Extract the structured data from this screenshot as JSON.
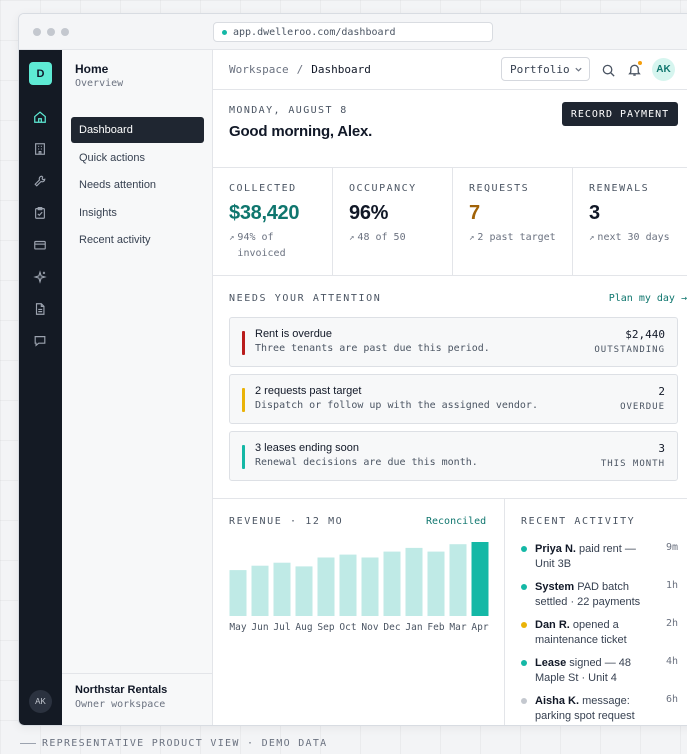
{
  "browser": {
    "url": "app.dwelleroo.com/dashboard"
  },
  "rail": {
    "logo": "D",
    "icons": [
      "home-icon",
      "building-icon",
      "wrench-icon",
      "clipboard-icon",
      "credit-card-icon",
      "sparkle-icon",
      "document-icon",
      "chat-icon"
    ],
    "avatar": "AK"
  },
  "subnav": {
    "title": "Home",
    "subtitle": "Overview",
    "items": [
      "Dashboard",
      "Quick actions",
      "Needs attention",
      "Insights",
      "Recent activity"
    ],
    "active": "Dashboard",
    "org_name": "Northstar Rentals",
    "org_sub": "Owner workspace"
  },
  "topbar": {
    "crumb_root": "Workspace",
    "crumb_sep": "/",
    "crumb_current": "Dashboard",
    "portfolio_label": "Portfolio",
    "avatar": "AK"
  },
  "header": {
    "date": "MONDAY, AUGUST 8",
    "greeting": "Good morning, Alex.",
    "record_button": "RECORD PAYMENT"
  },
  "stats": [
    {
      "label": "COLLECTED",
      "value": "$38,420",
      "sub": "94% of invoiced",
      "color": "#0f766e"
    },
    {
      "label": "OCCUPANCY",
      "value": "96%",
      "sub": "48 of 50",
      "color": "#111827"
    },
    {
      "label": "REQUESTS",
      "value": "7",
      "sub": "2 past target",
      "color": "#a16207"
    },
    {
      "label": "RENEWALS",
      "value": "3",
      "sub": "next 30 days",
      "color": "#111827"
    }
  ],
  "attention": {
    "title": "NEEDS YOUR ATTENTION",
    "link": "Plan my day →",
    "items": [
      {
        "title": "Rent is overdue",
        "desc": "Three tenants are past due this period.",
        "value": "$2,440",
        "unit": "OUTSTANDING",
        "color": "#b91c1c"
      },
      {
        "title": "2 requests past target",
        "desc": "Dispatch or follow up with the assigned vendor.",
        "value": "2",
        "unit": "OVERDUE",
        "color": "#eab308"
      },
      {
        "title": "3 leases ending soon",
        "desc": "Renewal decisions are due this month.",
        "value": "3",
        "unit": "THIS MONTH",
        "color": "#14b8a6"
      }
    ]
  },
  "revenue": {
    "title": "REVENUE · 12 MO",
    "tag": "Reconciled"
  },
  "chart_data": {
    "type": "bar",
    "title": "REVENUE · 12 MO",
    "categories": [
      "May",
      "Jun",
      "Jul",
      "Aug",
      "Sep",
      "Oct",
      "Nov",
      "Dec",
      "Jan",
      "Feb",
      "Mar",
      "Apr"
    ],
    "values": [
      62,
      68,
      72,
      67,
      79,
      83,
      79,
      87,
      92,
      87,
      97,
      100
    ],
    "highlight_index": 11,
    "bar_color": "#bfeae6",
    "highlight_color": "#14b8a6",
    "ylim": [
      0,
      100
    ]
  },
  "activity": {
    "title": "RECENT ACTIVITY",
    "items": [
      {
        "actor": "Priya N.",
        "text": " paid rent — Unit 3B",
        "time": "9m",
        "color": "#14b8a6"
      },
      {
        "actor": "System",
        "text": " PAD batch settled · 22 payments",
        "time": "1h",
        "color": "#14b8a6"
      },
      {
        "actor": "Dan R.",
        "text": " opened a maintenance ticket",
        "time": "2h",
        "color": "#eab308"
      },
      {
        "actor": "Lease",
        "text": " signed — 48 Maple St · Unit 4",
        "time": "4h",
        "color": "#14b8a6"
      },
      {
        "actor": "Aisha K.",
        "text": " message: parking spot request",
        "time": "6h",
        "color": "#c4c8cf"
      }
    ]
  },
  "footer_note": "REPRESENTATIVE PRODUCT VIEW · DEMO DATA"
}
